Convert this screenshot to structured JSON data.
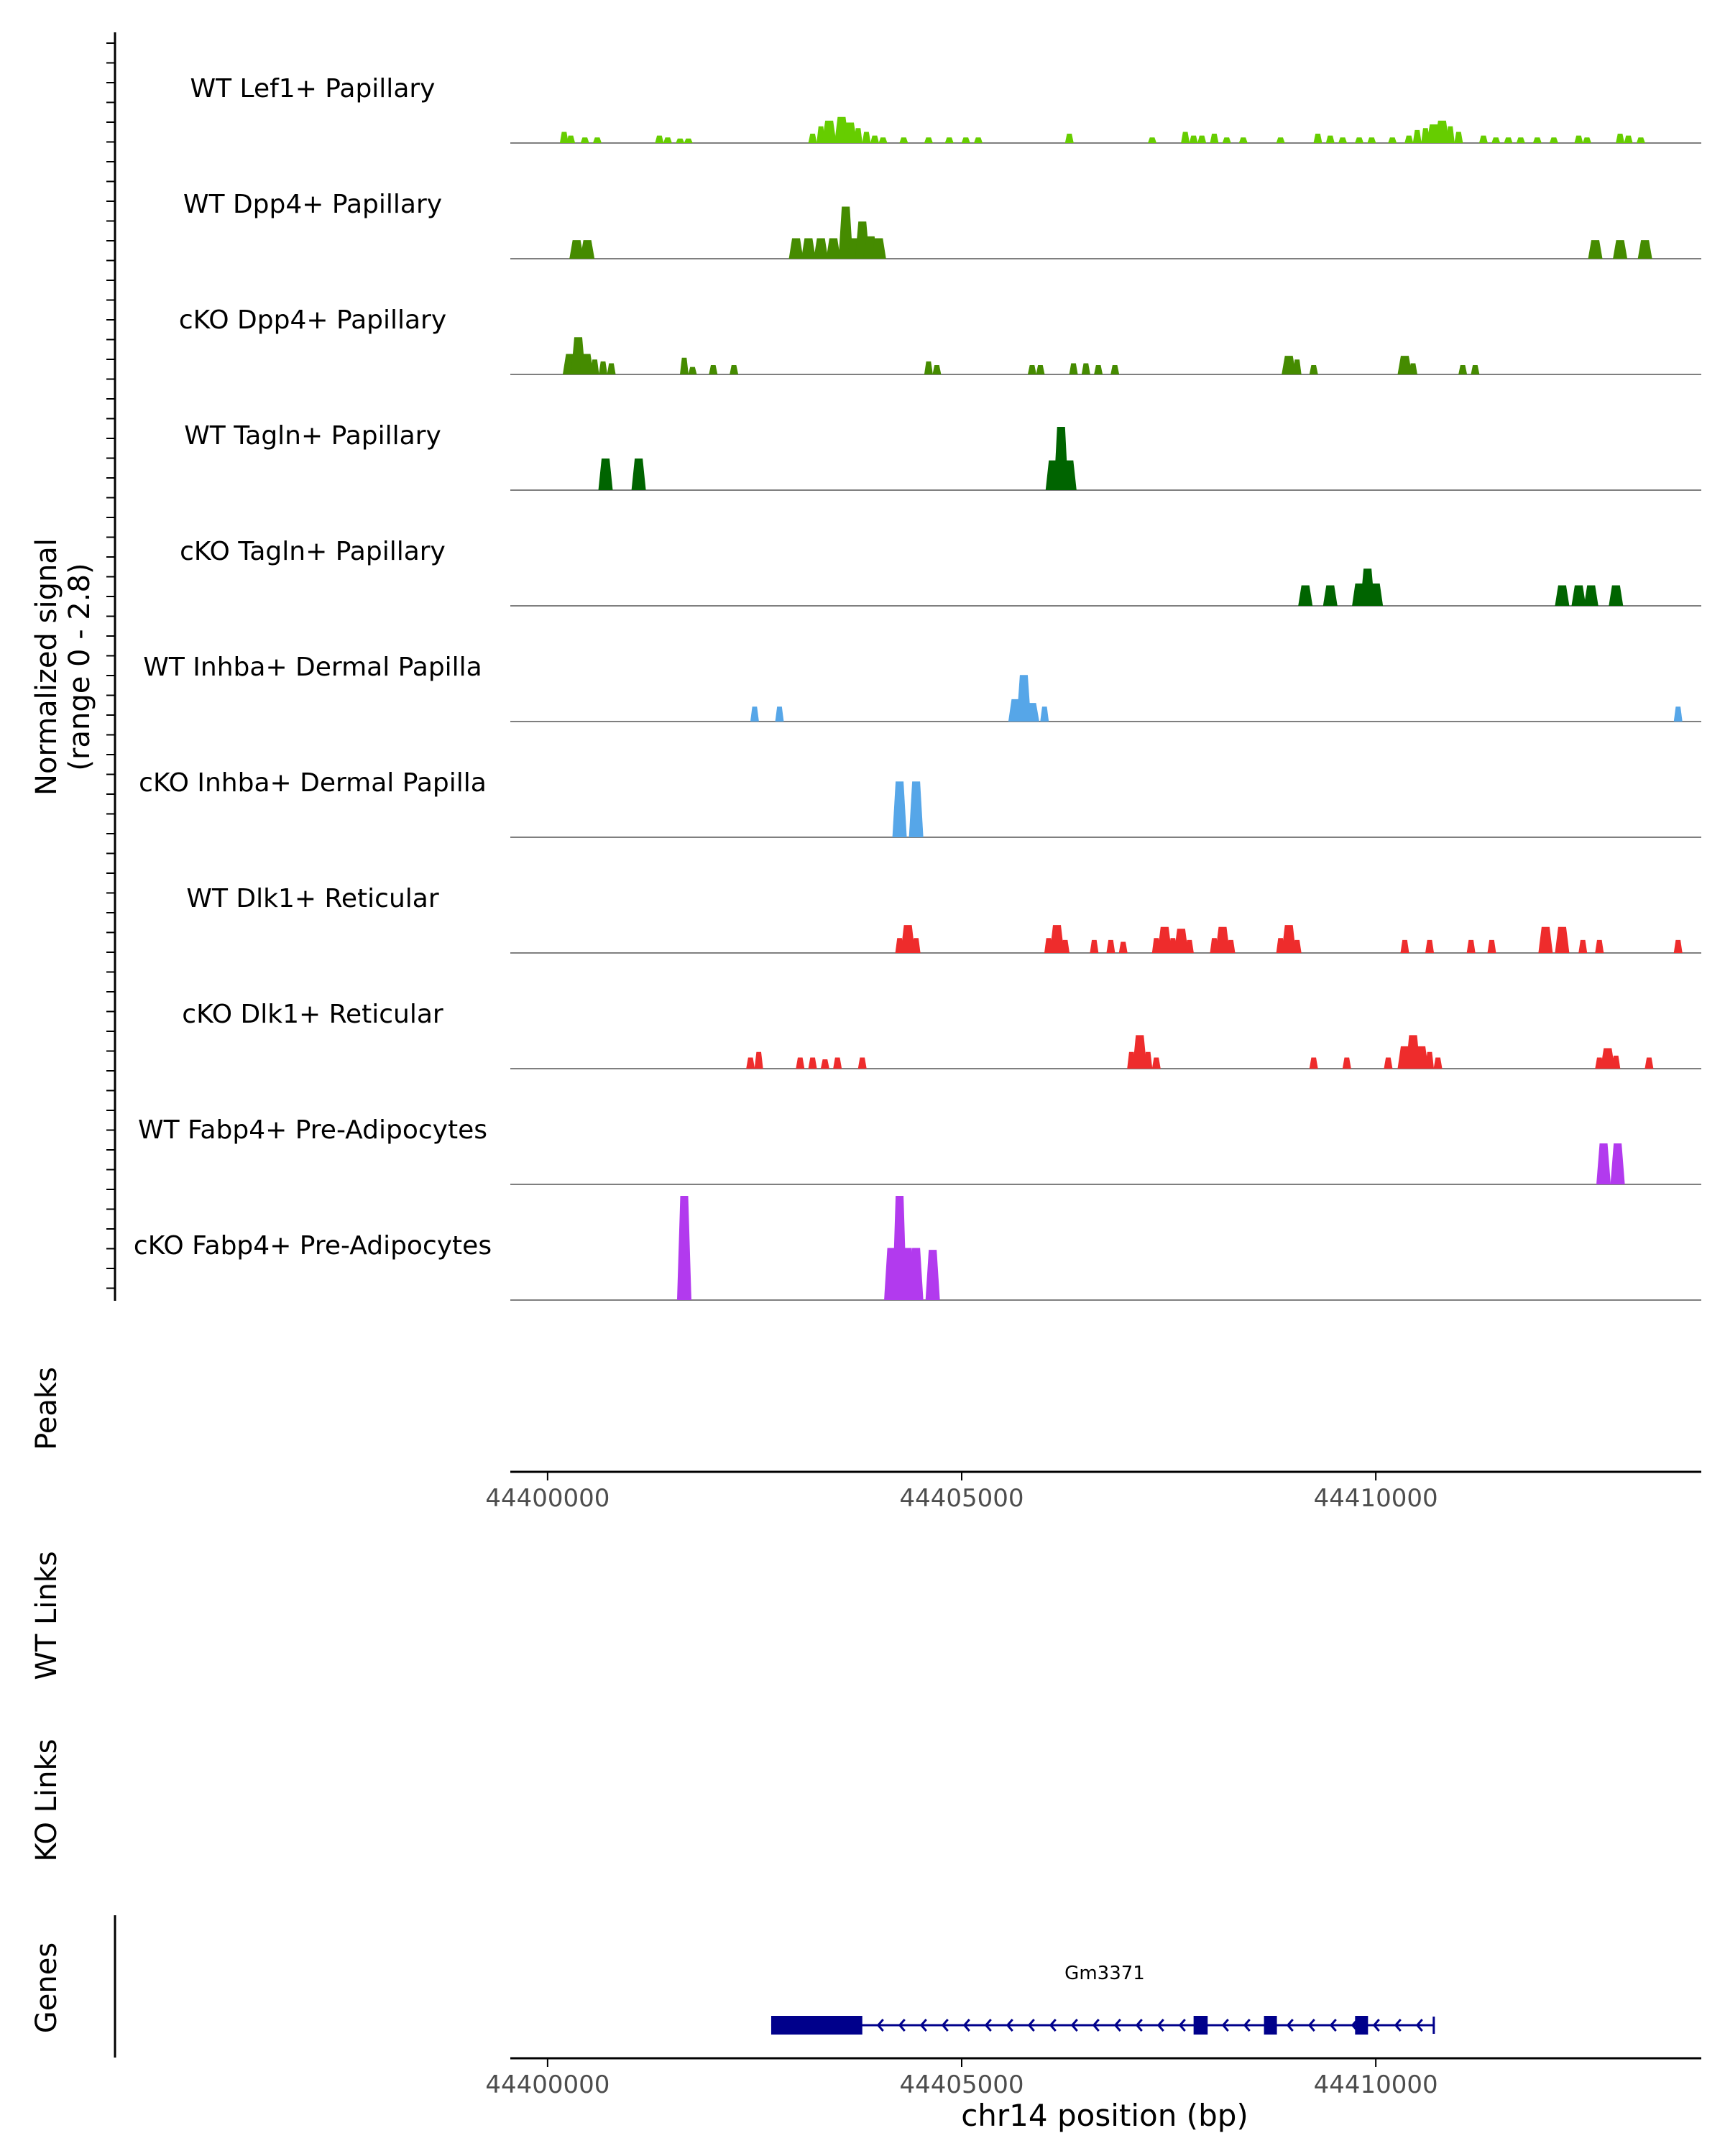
{
  "chart_data": {
    "type": "area",
    "title": "",
    "chromosome": "chr14",
    "xlim": [
      44399550,
      44413930
    ],
    "ylim": [
      0,
      2.8
    ],
    "colors": {
      "lef1": "#66CD00",
      "dpp4": "#458B00",
      "tagln": "#006400",
      "inhba": "#56A6E8",
      "dlk1": "#EE2C2C",
      "fabp4": "#B23AEE",
      "gene": "#00008B",
      "baseline": "#7f7f7f",
      "axis": "#000000"
    },
    "coverage": {
      "ylabel_line1": "Normalized signal",
      "ylabel_line2": "(range 0 - 2.8)",
      "tracks": [
        {
          "name": "WT Lef1+ Papillary",
          "color": "lef1",
          "peaks": [
            [
              44400200,
              0.3
            ],
            [
              44400280,
              0.2
            ],
            [
              44400450,
              0.15
            ],
            [
              44400600,
              0.15
            ],
            [
              44401350,
              0.2
            ],
            [
              44401450,
              0.15
            ],
            [
              44401600,
              0.12
            ],
            [
              44401700,
              0.12
            ],
            [
              44403200,
              0.25
            ],
            [
              44403300,
              0.45
            ],
            [
              44403400,
              0.6
            ],
            [
              44403550,
              0.7
            ],
            [
              44403650,
              0.55
            ],
            [
              44403750,
              0.4
            ],
            [
              44403850,
              0.3
            ],
            [
              44403950,
              0.2
            ],
            [
              44404050,
              0.15
            ],
            [
              44404300,
              0.15
            ],
            [
              44404600,
              0.15
            ],
            [
              44404850,
              0.15
            ],
            [
              44405050,
              0.15
            ],
            [
              44405200,
              0.15
            ],
            [
              44406300,
              0.25
            ],
            [
              44407300,
              0.15
            ],
            [
              44407700,
              0.3
            ],
            [
              44407800,
              0.2
            ],
            [
              44407900,
              0.2
            ],
            [
              44408050,
              0.25
            ],
            [
              44408200,
              0.15
            ],
            [
              44408400,
              0.15
            ],
            [
              44408850,
              0.15
            ],
            [
              44409300,
              0.25
            ],
            [
              44409450,
              0.2
            ],
            [
              44409600,
              0.15
            ],
            [
              44409800,
              0.15
            ],
            [
              44409950,
              0.15
            ],
            [
              44410200,
              0.15
            ],
            [
              44410400,
              0.2
            ],
            [
              44410500,
              0.35
            ],
            [
              44410600,
              0.4
            ],
            [
              44410700,
              0.5
            ],
            [
              44410800,
              0.6
            ],
            [
              44410900,
              0.45
            ],
            [
              44411000,
              0.3
            ],
            [
              44411300,
              0.2
            ],
            [
              44411450,
              0.15
            ],
            [
              44411600,
              0.15
            ],
            [
              44411750,
              0.15
            ],
            [
              44411950,
              0.15
            ],
            [
              44412150,
              0.15
            ],
            [
              44412450,
              0.2
            ],
            [
              44412550,
              0.15
            ],
            [
              44412950,
              0.25
            ],
            [
              44413050,
              0.2
            ],
            [
              44413200,
              0.15
            ]
          ]
        },
        {
          "name": "WT Dpp4+ Papillary",
          "color": "dpp4",
          "peaks": [
            [
              44400350,
              0.5
            ],
            [
              44400480,
              0.5
            ],
            [
              44403000,
              0.55
            ],
            [
              44403150,
              0.55
            ],
            [
              44403300,
              0.55
            ],
            [
              44403450,
              0.55
            ],
            [
              44403600,
              1.4
            ],
            [
              44403700,
              0.55
            ],
            [
              44403800,
              1.0
            ],
            [
              44403900,
              0.6
            ],
            [
              44404000,
              0.55
            ],
            [
              44412650,
              0.5
            ],
            [
              44412950,
              0.5
            ],
            [
              44413250,
              0.5
            ]
          ]
        },
        {
          "name": "cKO Dpp4+ Papillary",
          "color": "dpp4",
          "peaks": [
            [
              44400270,
              0.55
            ],
            [
              44400370,
              1.0
            ],
            [
              44400470,
              0.55
            ],
            [
              44400570,
              0.4
            ],
            [
              44400670,
              0.35
            ],
            [
              44400770,
              0.3
            ],
            [
              44401650,
              0.45
            ],
            [
              44401750,
              0.2
            ],
            [
              44402000,
              0.25
            ],
            [
              44402250,
              0.25
            ],
            [
              44404600,
              0.35
            ],
            [
              44404700,
              0.25
            ],
            [
              44405850,
              0.25
            ],
            [
              44405950,
              0.25
            ],
            [
              44406350,
              0.3
            ],
            [
              44406500,
              0.3
            ],
            [
              44406650,
              0.25
            ],
            [
              44406850,
              0.25
            ],
            [
              44408950,
              0.5
            ],
            [
              44409050,
              0.4
            ],
            [
              44409250,
              0.25
            ],
            [
              44410350,
              0.5
            ],
            [
              44410450,
              0.3
            ],
            [
              44411050,
              0.25
            ],
            [
              44411200,
              0.25
            ]
          ]
        },
        {
          "name": "WT Tagln+ Papillary",
          "color": "tagln",
          "peaks": [
            [
              44400700,
              0.85
            ],
            [
              44401100,
              0.85
            ],
            [
              44406100,
              0.8
            ],
            [
              44406200,
              1.7
            ],
            [
              44406300,
              0.8
            ]
          ]
        },
        {
          "name": "cKO Tagln+ Papillary",
          "color": "tagln",
          "peaks": [
            [
              44409150,
              0.55
            ],
            [
              44409450,
              0.55
            ],
            [
              44409800,
              0.6
            ],
            [
              44409900,
              1.0
            ],
            [
              44410000,
              0.6
            ],
            [
              44412250,
              0.55
            ],
            [
              44412450,
              0.55
            ],
            [
              44412600,
              0.55
            ],
            [
              44412900,
              0.55
            ]
          ]
        },
        {
          "name": "WT Inhba+ Dermal Papilla",
          "color": "inhba",
          "peaks": [
            [
              44402500,
              0.4
            ],
            [
              44402800,
              0.4
            ],
            [
              44405650,
              0.6
            ],
            [
              44405750,
              1.25
            ],
            [
              44405850,
              0.5
            ],
            [
              44406000,
              0.4
            ],
            [
              44413650,
              0.4
            ]
          ]
        },
        {
          "name": "cKO Inhba+ Dermal Papilla",
          "color": "inhba",
          "peaks": [
            [
              44404250,
              1.5
            ],
            [
              44404450,
              1.5
            ]
          ]
        },
        {
          "name": "WT Dlk1+ Reticular",
          "color": "dlk1",
          "peaks": [
            [
              44404250,
              0.4
            ],
            [
              44404350,
              0.75
            ],
            [
              44404450,
              0.4
            ],
            [
              44406050,
              0.4
            ],
            [
              44406150,
              0.75
            ],
            [
              44406250,
              0.35
            ],
            [
              44406600,
              0.35
            ],
            [
              44406800,
              0.35
            ],
            [
              44406950,
              0.3
            ],
            [
              44407350,
              0.4
            ],
            [
              44407450,
              0.7
            ],
            [
              44407550,
              0.4
            ],
            [
              44407650,
              0.65
            ],
            [
              44407750,
              0.35
            ],
            [
              44408050,
              0.4
            ],
            [
              44408150,
              0.7
            ],
            [
              44408250,
              0.35
            ],
            [
              44408850,
              0.4
            ],
            [
              44408950,
              0.75
            ],
            [
              44409050,
              0.35
            ],
            [
              44410350,
              0.35
            ],
            [
              44410650,
              0.35
            ],
            [
              44411150,
              0.35
            ],
            [
              44411400,
              0.35
            ],
            [
              44412050,
              0.7
            ],
            [
              44412250,
              0.7
            ],
            [
              44412500,
              0.35
            ],
            [
              44412700,
              0.35
            ],
            [
              44413650,
              0.35
            ]
          ]
        },
        {
          "name": "cKO Dlk1+ Reticular",
          "color": "dlk1",
          "peaks": [
            [
              44402450,
              0.3
            ],
            [
              44402550,
              0.45
            ],
            [
              44403050,
              0.3
            ],
            [
              44403200,
              0.3
            ],
            [
              44403350,
              0.25
            ],
            [
              44403500,
              0.3
            ],
            [
              44403800,
              0.3
            ],
            [
              44407050,
              0.45
            ],
            [
              44407150,
              0.9
            ],
            [
              44407250,
              0.45
            ],
            [
              44407350,
              0.3
            ],
            [
              44409250,
              0.3
            ],
            [
              44409650,
              0.3
            ],
            [
              44410150,
              0.3
            ],
            [
              44410350,
              0.6
            ],
            [
              44410450,
              0.9
            ],
            [
              44410550,
              0.6
            ],
            [
              44410650,
              0.45
            ],
            [
              44410750,
              0.3
            ],
            [
              44412700,
              0.3
            ],
            [
              44412800,
              0.55
            ],
            [
              44412900,
              0.35
            ],
            [
              44413300,
              0.3
            ]
          ]
        },
        {
          "name": "WT Fabp4+ Pre-Adipocytes",
          "color": "fabp4",
          "peaks": [
            [
              44412750,
              1.1
            ],
            [
              44412920,
              1.1
            ]
          ]
        },
        {
          "name": "cKO Fabp4+ Pre-Adipocytes",
          "color": "fabp4",
          "peaks": [
            [
              44401650,
              2.8
            ],
            [
              44404150,
              1.4
            ],
            [
              44404250,
              2.8
            ],
            [
              44404350,
              1.4
            ],
            [
              44404450,
              1.4
            ],
            [
              44404650,
              1.35
            ]
          ]
        }
      ]
    },
    "peaks_track": {
      "label": "Peaks",
      "ticks": [
        "44400000",
        "44405000",
        "44410000"
      ]
    },
    "links_tracks": [
      {
        "label": "WT Links"
      },
      {
        "label": "KO Links"
      }
    ],
    "genes_track": {
      "label": "Genes",
      "gene_name": "Gm3371",
      "gene_start": 44402700,
      "gene_end": 44410700,
      "strand": "-",
      "exons": [
        [
          44402700,
          44403800
        ],
        [
          44407800,
          44407970
        ],
        [
          44408650,
          44408780
        ],
        [
          44409750,
          44409900
        ]
      ],
      "ticks": [
        "44400000",
        "44405000",
        "44410000"
      ],
      "xlabel": "chr14 position (bp)"
    }
  }
}
